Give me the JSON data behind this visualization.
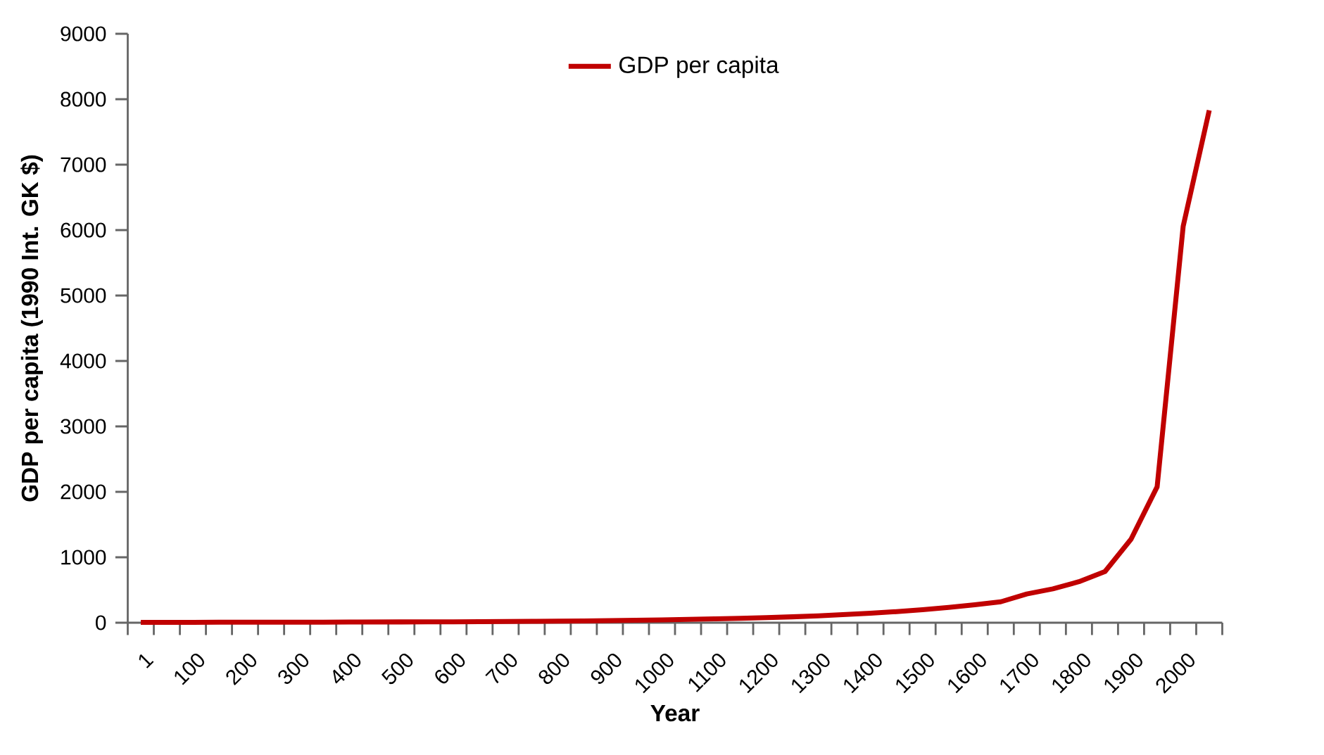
{
  "chart_data": {
    "type": "line",
    "categories": [
      "1",
      null,
      "100",
      null,
      "200",
      null,
      "300",
      null,
      "400",
      null,
      "500",
      null,
      "600",
      null,
      "700",
      null,
      "800",
      null,
      "900",
      null,
      "1000",
      null,
      "1100",
      null,
      "1200",
      null,
      "1300",
      null,
      "1400",
      null,
      "1500",
      null,
      "1600",
      null,
      "1700",
      null,
      "1800",
      null,
      "1900",
      null,
      "2000",
      null
    ],
    "series": [
      {
        "name": "GDP per capita",
        "color": "#c00000",
        "values": [
          5,
          6,
          6,
          7,
          8,
          8,
          9,
          9,
          10,
          11,
          12,
          13,
          14,
          16,
          18,
          21,
          24,
          28,
          32,
          37,
          43,
          50,
          58,
          67,
          78,
          90,
          105,
          125,
          145,
          170,
          200,
          235,
          275,
          320,
          440,
          518,
          627,
          782,
          1277,
          2076,
          6060,
          7830
        ]
      }
    ],
    "xlabel": "Year",
    "ylabel": "GDP per capita (1990 Int. GK $)",
    "ylim": [
      0,
      9000
    ],
    "yticks": [
      0,
      1000,
      2000,
      3000,
      4000,
      5000,
      6000,
      7000,
      8000,
      9000
    ],
    "legend": "top",
    "grid": false,
    "marker": "none",
    "line_style": "solid"
  }
}
